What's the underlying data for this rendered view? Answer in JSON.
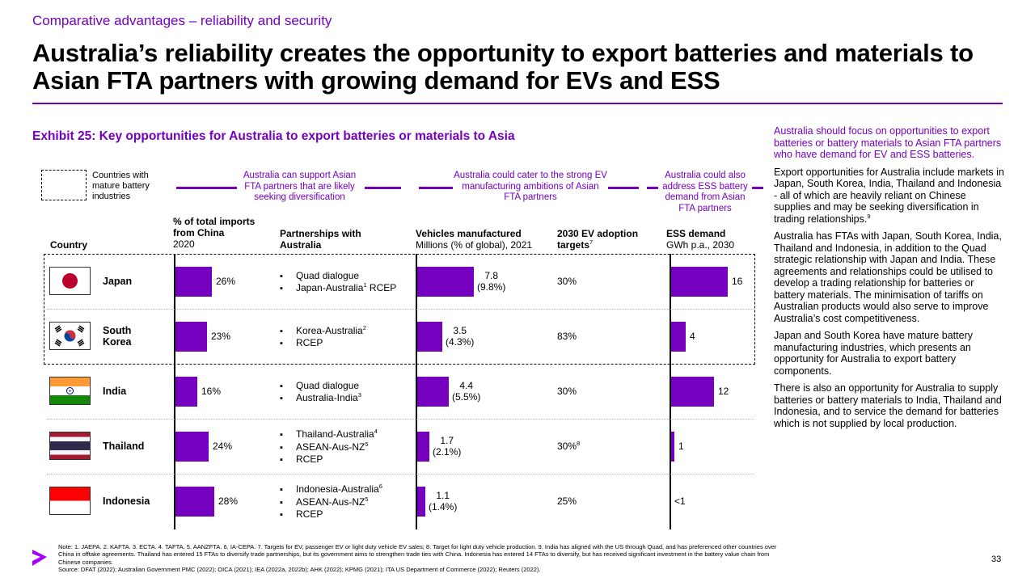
{
  "eyebrow": "Comparative advantages – reliability and security",
  "headline": "Australia’s reliability creates the opportunity to export batteries and materials to Asian FTA partners with growing demand for EVs and ESS",
  "exhibit_title": "Exhibit 25: Key opportunities for Australia to export batteries or materials to Asia",
  "legend_text": "Countries with mature battery industries",
  "callouts": {
    "support": "Australia can support Asian FTA partners that are likely seeking diversification",
    "ev": "Australia could cater to the strong EV manufacturing ambitions of Asian FTA partners",
    "ess": "Australia could also address ESS battery demand from Asian FTA partners"
  },
  "headers": {
    "country": "Country",
    "imports_bold": "% of total imports from China",
    "imports_sub": "2020",
    "partnerships": "Partnerships with Australia",
    "vehicles_bold": "Vehicles manufactured",
    "vehicles_sub": "Millions (% of global), 2021",
    "ev_targets": "2030 EV adoption targets",
    "ev_targets_sup": "7",
    "ess_bold": "ESS demand",
    "ess_sub": "GWh p.a., 2030"
  },
  "rows": [
    {
      "country": "Japan",
      "flag": "japan-flag",
      "imports_pct": 26,
      "imports_label": "26%",
      "partnerships": [
        {
          "text": "Quad dialogue",
          "sup": ""
        },
        {
          "text": "Japan-Australia",
          "sup": "1",
          "after": " RCEP"
        }
      ],
      "vehicles": 7.8,
      "vehicles_label": "7.8",
      "vehicles_pct": "(9.8%)",
      "ev_target": "30%",
      "ev_sup": "",
      "ess": 16,
      "ess_label": "16"
    },
    {
      "country": "South Korea",
      "flag": "south-korea-flag",
      "imports_pct": 23,
      "imports_label": "23%",
      "partnerships": [
        {
          "text": "Korea-Australia",
          "sup": "2"
        },
        {
          "text": "RCEP",
          "sup": ""
        }
      ],
      "vehicles": 3.5,
      "vehicles_label": "3.5",
      "vehicles_pct": "(4.3%)",
      "ev_target": "83%",
      "ev_sup": "",
      "ess": 4,
      "ess_label": "4"
    },
    {
      "country": "India",
      "flag": "india-flag",
      "imports_pct": 16,
      "imports_label": "16%",
      "partnerships": [
        {
          "text": "Quad dialogue",
          "sup": ""
        },
        {
          "text": "Australia-India",
          "sup": "3"
        }
      ],
      "vehicles": 4.4,
      "vehicles_label": "4.4",
      "vehicles_pct": "(5.5%)",
      "ev_target": "30%",
      "ev_sup": "",
      "ess": 12,
      "ess_label": "12"
    },
    {
      "country": "Thailand",
      "flag": "thailand-flag",
      "imports_pct": 24,
      "imports_label": "24%",
      "partnerships": [
        {
          "text": "Thailand-Australia",
          "sup": "4"
        },
        {
          "text": "ASEAN-Aus-NZ",
          "sup": "5"
        },
        {
          "text": "RCEP",
          "sup": ""
        }
      ],
      "vehicles": 1.7,
      "vehicles_label": "1.7",
      "vehicles_pct": "(2.1%)",
      "ev_target": "30%",
      "ev_sup": "8",
      "ess": 1,
      "ess_label": "1"
    },
    {
      "country": "Indonesia",
      "flag": "indonesia-flag",
      "imports_pct": 28,
      "imports_label": "28%",
      "partnerships": [
        {
          "text": "Indonesia-Australia",
          "sup": "6"
        },
        {
          "text": "ASEAN-Aus-NZ",
          "sup": "5"
        },
        {
          "text": "RCEP",
          "sup": ""
        }
      ],
      "vehicles": 1.1,
      "vehicles_label": "1.1",
      "vehicles_pct": "(1.4%)",
      "ev_target": "25%",
      "ev_sup": "",
      "ess": 0.3,
      "ess_label": "<1"
    }
  ],
  "scales": {
    "imports_max": 28,
    "vehicles_max": 7.8,
    "ess_max": 16
  },
  "sidebar": {
    "lead": "Australia should focus on opportunities to export batteries or battery materials to Asian FTA partners who have demand for EV and ESS batteries.",
    "p1": "Export opportunities for Australia include markets in Japan, South Korea, India, Thailand and Indonesia - all of which are heavily reliant on Chinese supplies and may be seeking diversification in trading relationships.",
    "p1_sup": "9",
    "p2": "Australia has FTAs with Japan, South Korea, India, Thailand and Indonesia, in addition to the Quad strategic relationship with Japan and India. These agreements and relationships could be utilised to develop a trading relationship for batteries or battery materials. The minimisation of tariffs on Australian products would also serve to improve Australia’s cost competitiveness.",
    "p3": "Japan and South Korea have mature battery manufacturing industries, which presents an opportunity for Australia to export battery components.",
    "p4": "There is also an opportunity for Australia to supply batteries or battery materials to India, Thailand and Indonesia, and to service the demand for batteries which is not supplied by local production."
  },
  "notes": "Note: 1. JAEPA. 2. KAFTA. 3. ECTA. 4. TAFTA. 5. AANZFTA. 6. IA-CEPA. 7. Targets for EV, passenger EV or light duty vehicle EV sales; 8. Target for light duty vehicle production. 9. India has aligned with the US through Quad, and has preferenced other countries over China in offtake agreements. Thailand has entered 15 FTAs to diversify trade partnerships, but its government aims to strengthen trade ties with China. Indonesia has entered 14 FTAs to diversify, but has received significant investment in the battery value chain from Chinese companies.",
  "source": "Source: DFAT (2022); Australian Government PMC (2022); OICA (2021); IEA (2022a, 2022b); AHK (2022); KPMG (2021); ITA US Department of Commerce (2022); Reuters (2022).",
  "page_number": "33",
  "colors": {
    "accent": "#7500c0"
  }
}
